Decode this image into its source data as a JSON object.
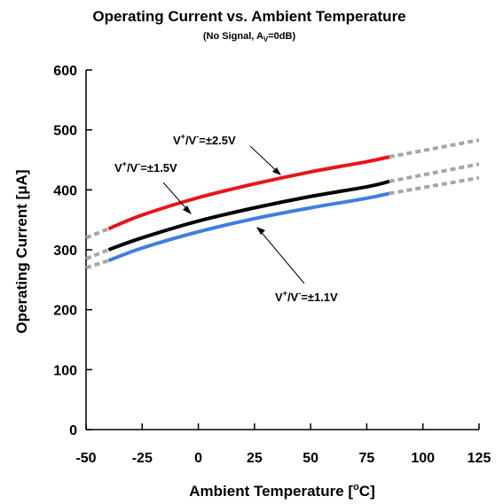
{
  "chart_data": {
    "type": "line",
    "title": "Operating Current vs. Ambient Temperature",
    "subtitle": {
      "prefix": "(No Signal, A",
      "sub": "V",
      "suffix": "=0dB)"
    },
    "xlabel": {
      "main": "Ambient Temperature [",
      "sup": "o",
      "tail": "C]"
    },
    "ylabel": "Operating Current [μA]",
    "xlim": [
      -50,
      125
    ],
    "ylim": [
      0,
      600
    ],
    "xticks": [
      -50,
      -25,
      0,
      25,
      50,
      75,
      100,
      125
    ],
    "yticks": [
      0,
      100,
      200,
      300,
      400,
      500,
      600
    ],
    "grid": false,
    "measured_range": [
      -40,
      85
    ],
    "series": [
      {
        "label": {
          "v": "V",
          "p": "+",
          "sep": "/V",
          "m": "-",
          "val": "=±2.5V"
        },
        "color": "#e8141b",
        "x": [
          -40,
          -25,
          0,
          25,
          50,
          75,
          85
        ],
        "y": [
          335,
          358,
          387,
          410,
          430,
          447,
          455
        ],
        "extrapolated": {
          "x": [
            -50,
            -40,
            85,
            125
          ],
          "y": [
            320,
            335,
            455,
            483
          ]
        }
      },
      {
        "label": {
          "v": "V",
          "p": "+",
          "sep": "/V",
          "m": "-",
          "val": "=±1.5V"
        },
        "color": "#000000",
        "x": [
          -40,
          -25,
          0,
          25,
          50,
          75,
          85
        ],
        "y": [
          300,
          320,
          348,
          370,
          389,
          405,
          414
        ],
        "extrapolated": {
          "x": [
            -50,
            -40,
            85,
            125
          ],
          "y": [
            285,
            300,
            414,
            443
          ]
        }
      },
      {
        "label": {
          "v": "V",
          "p": "+",
          "sep": "/V",
          "m": "-",
          "val": "=±1.1V"
        },
        "color": "#3f7fe0",
        "x": [
          -40,
          -25,
          0,
          25,
          50,
          75,
          85
        ],
        "y": [
          282,
          303,
          330,
          352,
          370,
          386,
          394
        ],
        "extrapolated": {
          "x": [
            -50,
            -40,
            85,
            125
          ],
          "y": [
            270,
            282,
            394,
            420
          ]
        }
      }
    ]
  }
}
